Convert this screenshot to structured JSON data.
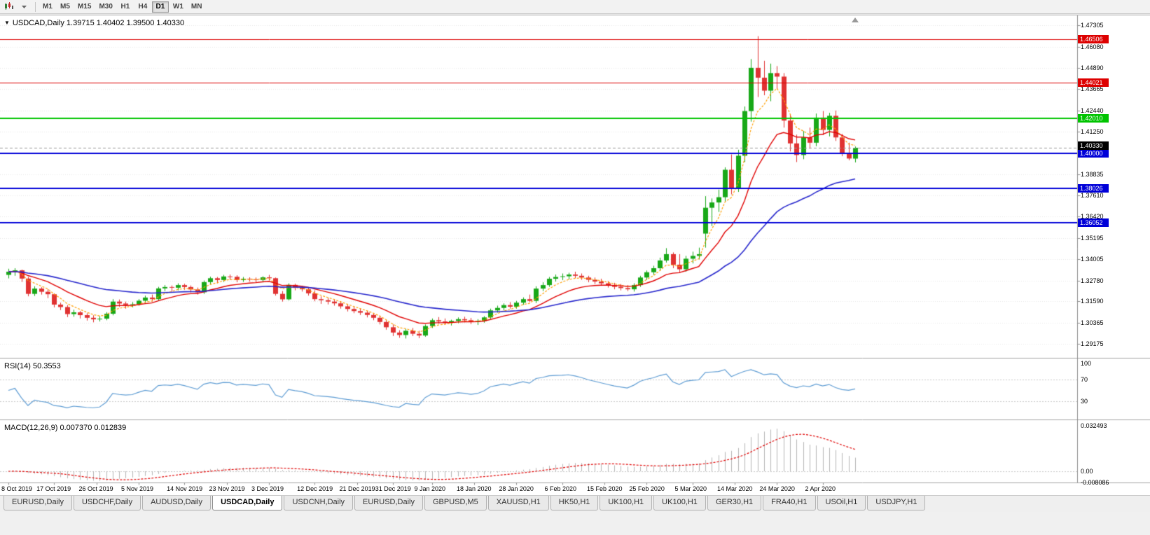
{
  "toolbar": {
    "timeframes": [
      "M1",
      "M5",
      "M15",
      "M30",
      "H1",
      "H4",
      "D1",
      "W1",
      "MN"
    ],
    "active_timeframe": "D1"
  },
  "chart": {
    "title": "USDCAD,Daily 1.39715 1.40402 1.39500 1.40330",
    "symbol": "USDCAD",
    "period": "Daily",
    "open": "1.39715",
    "high": "1.40402",
    "low": "1.39500",
    "close": "1.40330"
  },
  "indicators": {
    "rsi": {
      "text": "RSI(14) 50.3553",
      "period": 14,
      "value": 50.3553,
      "color": "#5e9cd3",
      "axis": [
        {
          "label": "100",
          "value": 100
        },
        {
          "label": "70",
          "value": 70
        },
        {
          "label": "30",
          "value": 30
        }
      ],
      "levels": [
        70,
        30
      ]
    },
    "macd": {
      "text": "MACD(12,26,9) 0.007370 0.012839",
      "fast": 12,
      "slow": 26,
      "smooth": 9,
      "main_value": 0.00737,
      "signal_value": 0.012839,
      "histogram_color": "#b4b4b4",
      "signal_color": "#e00000",
      "axis": [
        {
          "label": "0.032493",
          "value": 0.032493
        },
        {
          "label": "0.00",
          "value": 0
        },
        {
          "label": "-0.008086",
          "value": -0.008086
        }
      ]
    }
  },
  "price_axis": {
    "ticks": [
      {
        "label": "1.47305",
        "price": 1.47305
      },
      {
        "label": "1.46080",
        "price": 1.4608
      },
      {
        "label": "1.44890",
        "price": 1.4489
      },
      {
        "label": "1.43665",
        "price": 1.43665
      },
      {
        "label": "1.42440",
        "price": 1.4244
      },
      {
        "label": "1.41250",
        "price": 1.4125
      },
      {
        "label": "1.38835",
        "price": 1.38835
      },
      {
        "label": "1.37610",
        "price": 1.3761
      },
      {
        "label": "1.36420",
        "price": 1.3642
      },
      {
        "label": "1.35195",
        "price": 1.35195
      },
      {
        "label": "1.34005",
        "price": 1.34005
      },
      {
        "label": "1.32780",
        "price": 1.3278
      },
      {
        "label": "1.31590",
        "price": 1.3159
      },
      {
        "label": "1.30365",
        "price": 1.30365
      },
      {
        "label": "1.29175",
        "price": 1.29175
      }
    ]
  },
  "hlines": [
    {
      "label": "1.46506",
      "price": 1.46506,
      "color": "#dd0000",
      "width": 1
    },
    {
      "label": "1.44021",
      "price": 1.44021,
      "color": "#dd0000",
      "width": 1
    },
    {
      "label": "1.42010",
      "price": 1.4201,
      "color": "#00c400",
      "width": 2
    },
    {
      "label": "1.40000",
      "price": 1.4,
      "color": "#0000d8",
      "width": 2
    },
    {
      "label": "1.38026",
      "price": 1.38026,
      "color": "#0000d8",
      "width": 2
    },
    {
      "label": "1.36052",
      "price": 1.36052,
      "color": "#0000d8",
      "width": 2
    }
  ],
  "current_price": {
    "label": "1.40330",
    "value": 1.4033,
    "box_color": "#000000"
  },
  "time_axis": [
    {
      "text": "8 Oct 2019",
      "bar": 0
    },
    {
      "text": "17 Oct 2019",
      "bar": 7
    },
    {
      "text": "26 Oct 2019",
      "bar": 13.5
    },
    {
      "text": "5 Nov 2019",
      "bar": 20
    },
    {
      "text": "14 Nov 2019",
      "bar": 27
    },
    {
      "text": "23 Nov 2019",
      "bar": 33.5
    },
    {
      "text": "3 Dec 2019",
      "bar": 40
    },
    {
      "text": "12 Dec 2019",
      "bar": 47
    },
    {
      "text": "21 Dec 2019",
      "bar": 53.5
    },
    {
      "text": "31 Dec 2019",
      "bar": 59
    },
    {
      "text": "9 Jan 2020",
      "bar": 65
    },
    {
      "text": "18 Jan 2020",
      "bar": 71.5
    },
    {
      "text": "28 Jan 2020",
      "bar": 78
    },
    {
      "text": "6 Feb 2020",
      "bar": 85
    },
    {
      "text": "15 Feb 2020",
      "bar": 91.5
    },
    {
      "text": "25 Feb 2020",
      "bar": 98
    },
    {
      "text": "5 Mar 2020",
      "bar": 105
    },
    {
      "text": "14 Mar 2020",
      "bar": 111.5
    },
    {
      "text": "24 Mar 2020",
      "bar": 118
    },
    {
      "text": "2 Apr 2020",
      "bar": 125
    }
  ],
  "chart_data": {
    "type": "candlestick",
    "symbol": "USDCAD",
    "timeframe": "Daily",
    "up_color": "#18a818",
    "down_color": "#e03232",
    "moving_averages": [
      {
        "period": 5,
        "color": "#ff9f00",
        "style": "dashed",
        "width": 1.2
      },
      {
        "period": 13,
        "color": "#e00000",
        "style": "solid",
        "width": 1.4
      },
      {
        "period": 40,
        "color": "#2727cc",
        "style": "solid",
        "width": 1.6
      }
    ],
    "ohlc": [
      [
        1.331,
        1.3345,
        1.329,
        1.3328
      ],
      [
        1.3328,
        1.3348,
        1.3305,
        1.3336
      ],
      [
        1.3336,
        1.334,
        1.327,
        1.3289
      ],
      [
        1.3289,
        1.3298,
        1.3188,
        1.3202
      ],
      [
        1.3202,
        1.3245,
        1.319,
        1.3232
      ],
      [
        1.3232,
        1.324,
        1.3198,
        1.3214
      ],
      [
        1.3214,
        1.3228,
        1.3178,
        1.32
      ],
      [
        1.32,
        1.3205,
        1.3125,
        1.3141
      ],
      [
        1.3141,
        1.3152,
        1.311,
        1.3127
      ],
      [
        1.3127,
        1.3138,
        1.307,
        1.3087
      ],
      [
        1.3087,
        1.3112,
        1.3072,
        1.3097
      ],
      [
        1.3097,
        1.3105,
        1.3062,
        1.3081
      ],
      [
        1.3081,
        1.3092,
        1.305,
        1.3066
      ],
      [
        1.3066,
        1.308,
        1.304,
        1.3057
      ],
      [
        1.3057,
        1.3075,
        1.3045,
        1.3061
      ],
      [
        1.3061,
        1.3098,
        1.3052,
        1.3089
      ],
      [
        1.3089,
        1.3172,
        1.308,
        1.3158
      ],
      [
        1.3158,
        1.317,
        1.3128,
        1.3147
      ],
      [
        1.3147,
        1.3158,
        1.3118,
        1.3139
      ],
      [
        1.3139,
        1.3155,
        1.3125,
        1.3143
      ],
      [
        1.3143,
        1.3172,
        1.3135,
        1.3163
      ],
      [
        1.3163,
        1.3192,
        1.315,
        1.3181
      ],
      [
        1.3181,
        1.3198,
        1.3158,
        1.3172
      ],
      [
        1.3172,
        1.3242,
        1.3165,
        1.3233
      ],
      [
        1.3233,
        1.3252,
        1.3218,
        1.3241
      ],
      [
        1.3241,
        1.325,
        1.3216,
        1.3237
      ],
      [
        1.3237,
        1.3262,
        1.3222,
        1.3252
      ],
      [
        1.3252,
        1.326,
        1.3225,
        1.3241
      ],
      [
        1.3241,
        1.325,
        1.321,
        1.3227
      ],
      [
        1.3227,
        1.3238,
        1.3198,
        1.3211
      ],
      [
        1.3211,
        1.3278,
        1.3202,
        1.3269
      ],
      [
        1.3269,
        1.33,
        1.3255,
        1.3291
      ],
      [
        1.3291,
        1.3298,
        1.3262,
        1.3281
      ],
      [
        1.3281,
        1.331,
        1.327,
        1.3301
      ],
      [
        1.3301,
        1.3312,
        1.3282,
        1.3299
      ],
      [
        1.3299,
        1.3308,
        1.3268,
        1.3281
      ],
      [
        1.3281,
        1.3298,
        1.327,
        1.3288
      ],
      [
        1.3288,
        1.3296,
        1.3272,
        1.3285
      ],
      [
        1.3285,
        1.3295,
        1.3268,
        1.3281
      ],
      [
        1.3281,
        1.3302,
        1.3268,
        1.3296
      ],
      [
        1.3296,
        1.331,
        1.3278,
        1.3291
      ],
      [
        1.3291,
        1.3295,
        1.3192,
        1.3202
      ],
      [
        1.3202,
        1.3218,
        1.3158,
        1.3171
      ],
      [
        1.3171,
        1.3262,
        1.3165,
        1.3253
      ],
      [
        1.3253,
        1.326,
        1.3222,
        1.3239
      ],
      [
        1.3239,
        1.3248,
        1.3215,
        1.3228
      ],
      [
        1.3228,
        1.324,
        1.3192,
        1.3205
      ],
      [
        1.3205,
        1.3222,
        1.316,
        1.3172
      ],
      [
        1.3172,
        1.3188,
        1.3145,
        1.3166
      ],
      [
        1.3166,
        1.318,
        1.3142,
        1.3158
      ],
      [
        1.3158,
        1.3172,
        1.3135,
        1.3148
      ],
      [
        1.3148,
        1.316,
        1.3118,
        1.3131
      ],
      [
        1.3131,
        1.3145,
        1.3102,
        1.3116
      ],
      [
        1.3116,
        1.313,
        1.3092,
        1.3104
      ],
      [
        1.3104,
        1.3118,
        1.3082,
        1.3095
      ],
      [
        1.3095,
        1.3105,
        1.3068,
        1.3082
      ],
      [
        1.3082,
        1.3092,
        1.3052,
        1.3066
      ],
      [
        1.3066,
        1.3078,
        1.3028,
        1.3042
      ],
      [
        1.3042,
        1.3052,
        1.2998,
        1.3012
      ],
      [
        1.3012,
        1.3028,
        1.2962,
        1.2982
      ],
      [
        1.2982,
        1.2995,
        1.2952,
        1.2968
      ],
      [
        1.2968,
        1.3002,
        1.2948,
        1.2992
      ],
      [
        1.2992,
        1.3008,
        1.2962,
        1.2975
      ],
      [
        1.2975,
        1.2992,
        1.295,
        1.2965
      ],
      [
        1.2965,
        1.3028,
        1.2958,
        1.3019
      ],
      [
        1.3019,
        1.3062,
        1.3008,
        1.3052
      ],
      [
        1.3052,
        1.307,
        1.3032,
        1.3045
      ],
      [
        1.3045,
        1.3062,
        1.3028,
        1.3038
      ],
      [
        1.3038,
        1.3055,
        1.3022,
        1.3048
      ],
      [
        1.3048,
        1.3068,
        1.3035,
        1.3058
      ],
      [
        1.3058,
        1.3072,
        1.304,
        1.3052
      ],
      [
        1.3052,
        1.3065,
        1.303,
        1.3042
      ],
      [
        1.3042,
        1.3058,
        1.3025,
        1.3048
      ],
      [
        1.3048,
        1.3075,
        1.3038,
        1.3068
      ],
      [
        1.3068,
        1.3118,
        1.3058,
        1.3108
      ],
      [
        1.3108,
        1.3135,
        1.3095,
        1.3122
      ],
      [
        1.3122,
        1.3148,
        1.3108,
        1.3138
      ],
      [
        1.3138,
        1.3155,
        1.3118,
        1.3129
      ],
      [
        1.3129,
        1.3162,
        1.3118,
        1.3152
      ],
      [
        1.3152,
        1.3182,
        1.314,
        1.3172
      ],
      [
        1.3172,
        1.3198,
        1.3155,
        1.3162
      ],
      [
        1.3162,
        1.3245,
        1.315,
        1.3232
      ],
      [
        1.3232,
        1.3268,
        1.3218,
        1.3252
      ],
      [
        1.3252,
        1.3298,
        1.3242,
        1.3288
      ],
      [
        1.3288,
        1.3312,
        1.3272,
        1.3298
      ],
      [
        1.3298,
        1.3318,
        1.328,
        1.3302
      ],
      [
        1.3302,
        1.3322,
        1.3285,
        1.3312
      ],
      [
        1.3312,
        1.3328,
        1.3292,
        1.3305
      ],
      [
        1.3305,
        1.3318,
        1.3282,
        1.3295
      ],
      [
        1.3295,
        1.3305,
        1.3268,
        1.3282
      ],
      [
        1.3282,
        1.3295,
        1.3258,
        1.3272
      ],
      [
        1.3272,
        1.3288,
        1.3248,
        1.3262
      ],
      [
        1.3262,
        1.3275,
        1.3238,
        1.3252
      ],
      [
        1.3252,
        1.3265,
        1.3228,
        1.3242
      ],
      [
        1.3242,
        1.3258,
        1.3222,
        1.3235
      ],
      [
        1.3235,
        1.3252,
        1.3218,
        1.3228
      ],
      [
        1.3228,
        1.3262,
        1.3215,
        1.3252
      ],
      [
        1.3252,
        1.3305,
        1.3242,
        1.3295
      ],
      [
        1.3295,
        1.3335,
        1.3282,
        1.3325
      ],
      [
        1.3325,
        1.3362,
        1.331,
        1.3348
      ],
      [
        1.3348,
        1.3408,
        1.3332,
        1.3392
      ],
      [
        1.3392,
        1.3462,
        1.338,
        1.3428
      ],
      [
        1.3428,
        1.3438,
        1.3348,
        1.3368
      ],
      [
        1.3368,
        1.3428,
        1.3322,
        1.3342
      ],
      [
        1.3342,
        1.3418,
        1.3328,
        1.3402
      ],
      [
        1.3402,
        1.3442,
        1.3375,
        1.3418
      ],
      [
        1.3418,
        1.3465,
        1.3398,
        1.3428
      ],
      [
        1.3545,
        1.3758,
        1.3465,
        1.3692
      ],
      [
        1.3692,
        1.3745,
        1.3588,
        1.3722
      ],
      [
        1.3722,
        1.3795,
        1.3668,
        1.3752
      ],
      [
        1.3752,
        1.3922,
        1.3728,
        1.3908
      ],
      [
        1.3908,
        1.3995,
        1.3768,
        1.3802
      ],
      [
        1.3802,
        1.4022,
        1.3782,
        1.3988
      ],
      [
        1.3988,
        1.4268,
        1.3952,
        1.4242
      ],
      [
        1.4242,
        1.4538,
        1.4182,
        1.4488
      ],
      [
        1.4488,
        1.4668,
        1.4322,
        1.4432
      ],
      [
        1.4432,
        1.4528,
        1.4332,
        1.4358
      ],
      [
        1.4358,
        1.4512,
        1.4298,
        1.4458
      ],
      [
        1.4458,
        1.4498,
        1.4368,
        1.4438
      ],
      [
        1.4438,
        1.4458,
        1.4148,
        1.4188
      ],
      [
        1.4188,
        1.4225,
        1.4012,
        1.4058
      ],
      [
        1.4058,
        1.4108,
        1.3952,
        1.3992
      ],
      [
        1.3992,
        1.4128,
        1.3968,
        1.4092
      ],
      [
        1.4092,
        1.4148,
        1.4028,
        1.4062
      ],
      [
        1.4062,
        1.4228,
        1.4042,
        1.4205
      ],
      [
        1.4205,
        1.4242,
        1.4105,
        1.4135
      ],
      [
        1.4135,
        1.4232,
        1.4098,
        1.4215
      ],
      [
        1.4215,
        1.4245,
        1.4072,
        1.4092
      ],
      [
        1.4092,
        1.4112,
        1.3985,
        1.4005
      ],
      [
        1.4005,
        1.4062,
        1.3962,
        1.3972
      ],
      [
        1.39715,
        1.40402,
        1.395,
        1.4033
      ]
    ]
  },
  "tabs": [
    {
      "label": "EURUSD,Daily",
      "active": false
    },
    {
      "label": "USDCHF,Daily",
      "active": false
    },
    {
      "label": "AUDUSD,Daily",
      "active": false
    },
    {
      "label": "USDCAD,Daily",
      "active": true
    },
    {
      "label": "USDCNH,Daily",
      "active": false
    },
    {
      "label": "EURUSD,Daily",
      "active": false
    },
    {
      "label": "GBPUSD,M5",
      "active": false
    },
    {
      "label": "XAUUSD,H1",
      "active": false
    },
    {
      "label": "HK50,H1",
      "active": false
    },
    {
      "label": "UK100,H1",
      "active": false
    },
    {
      "label": "UK100,H1",
      "active": false
    },
    {
      "label": "GER30,H1",
      "active": false
    },
    {
      "label": "FRA40,H1",
      "active": false
    },
    {
      "label": "USOil,H1",
      "active": false
    },
    {
      "label": "USDJPY,H1",
      "active": false
    }
  ]
}
